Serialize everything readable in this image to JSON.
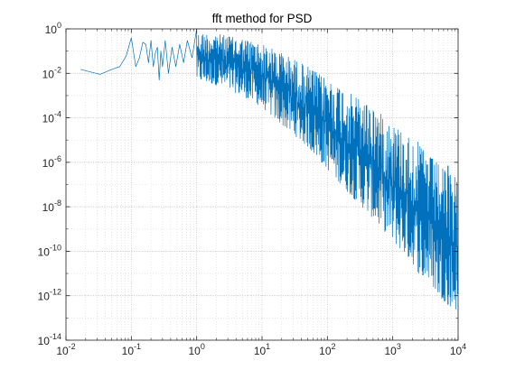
{
  "chart_data": {
    "type": "line",
    "title": "fft method for PSD",
    "xlabel": "",
    "ylabel": "",
    "x_scale": "log",
    "y_scale": "log",
    "xlim": [
      0.01,
      10000
    ],
    "ylim": [
      1e-14,
      1
    ],
    "grid": true,
    "minor_grid": true,
    "line_color": "#0072BD",
    "x_ticks": [
      {
        "value": 0.01,
        "base": "10",
        "exp": "-2"
      },
      {
        "value": 0.1,
        "base": "10",
        "exp": "-1"
      },
      {
        "value": 1,
        "base": "10",
        "exp": "0"
      },
      {
        "value": 10,
        "base": "10",
        "exp": "1"
      },
      {
        "value": 100,
        "base": "10",
        "exp": "2"
      },
      {
        "value": 1000,
        "base": "10",
        "exp": "3"
      },
      {
        "value": 10000,
        "base": "10",
        "exp": "4"
      }
    ],
    "y_ticks": [
      {
        "value": 1,
        "base": "10",
        "exp": "0"
      },
      {
        "value": 0.01,
        "base": "10",
        "exp": "-2"
      },
      {
        "value": 0.0001,
        "base": "10",
        "exp": "-4"
      },
      {
        "value": 1e-06,
        "base": "10",
        "exp": "-6"
      },
      {
        "value": 1e-08,
        "base": "10",
        "exp": "-8"
      },
      {
        "value": 1e-10,
        "base": "10",
        "exp": "-10"
      },
      {
        "value": 1e-12,
        "base": "10",
        "exp": "-12"
      },
      {
        "value": 1e-14,
        "base": "10",
        "exp": "-14"
      }
    ],
    "series": [
      {
        "x": [
          0.0167,
          0.0333,
          0.05,
          0.0667,
          0.0833,
          0.1,
          0.117,
          0.133,
          0.15,
          0.167,
          0.183,
          0.2,
          0.217,
          0.233,
          0.25,
          0.267,
          0.283,
          0.3,
          0.33,
          0.37,
          0.42,
          0.48,
          0.55,
          0.63,
          0.72,
          0.85,
          1.0
        ],
        "y": [
          0.015,
          0.009,
          0.015,
          0.02,
          0.06,
          0.4,
          0.02,
          0.05,
          0.25,
          0.2,
          0.03,
          0.3,
          0.02,
          0.08,
          0.15,
          0.005,
          0.1,
          0.02,
          0.3,
          0.01,
          0.15,
          0.02,
          0.2,
          0.03,
          0.3,
          0.05,
          1.0
        ]
      }
    ],
    "envelope": {
      "x": [
        1,
        2,
        5,
        10,
        20,
        50,
        100,
        200,
        500,
        1000,
        1500,
        2000,
        2500,
        3000,
        4000,
        5000,
        7000,
        10000
      ],
      "upper": [
        0.6,
        0.6,
        0.35,
        0.2,
        0.08,
        0.02,
        0.005,
        0.0015,
        0.0003,
        5e-05,
        2e-05,
        1e-05,
        8e-06,
        3e-06,
        1.5e-06,
        8e-07,
        3e-07,
        3e-07
      ],
      "lower": [
        0.005,
        0.003,
        0.001,
        0.0003,
        5e-05,
        5e-06,
        5e-07,
        5e-08,
        3e-09,
        3e-10,
        8e-11,
        3e-11,
        1e-11,
        8e-12,
        3e-12,
        1e-12,
        4e-13,
        2e-13
      ],
      "peak_x": [
        2900,
        7000
      ],
      "peak_y": [
        3e-06,
        7e-07
      ]
    }
  }
}
